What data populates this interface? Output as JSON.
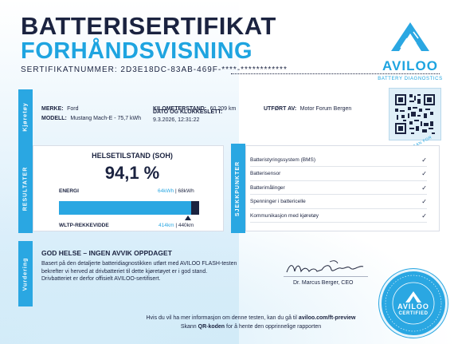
{
  "header": {
    "title_line1": "BATTERISERTIFIKAT",
    "title_line2": "FORHÅNDSVISNING",
    "certificate_number_label": "SERTIFIKATNUMMER:",
    "certificate_number": "2D3E18DC-83AB-469F-****-************"
  },
  "logo": {
    "word": "AVILOO",
    "subtitle": "BATTERY DIAGNOSTICS"
  },
  "vehicle": {
    "band_label": "Kjøretøy",
    "make_label": "MERKE:",
    "make": "Ford",
    "model_label": "MODELL:",
    "model": "Mustang Mach-E - 75,7 kWh",
    "odometer_label": "KILOMETERSTAND:",
    "odometer": "60 209 km",
    "date_label": "DATO OG KLOKKESLETT:",
    "date": "9.3.2026, 12:31:22",
    "performed_by_label": "UTFØRT AV:",
    "performed_by": "Motor Forum Bergen",
    "scan_label": "SCAN FOR"
  },
  "results": {
    "band_label": "RESULTATER",
    "soh_title": "HELSETILSTAND (SOH)",
    "soh_value": "94,1 %",
    "soh_fraction": 0.941,
    "energy_label": "ENERGI",
    "energy_current": "64kWh",
    "energy_total": "68kWh",
    "range_label": "WLTP-REKKEVIDDE",
    "range_current": "414km",
    "range_total": "440km"
  },
  "checkpoints": {
    "band_label": "SJEKKPUNKTER",
    "items": [
      "Batteristyringssystem (BMS)",
      "Batterisensor",
      "Batterimålinger",
      "Spenninger i battericelle",
      "Kommunikasjon med kjøretøy"
    ],
    "mark": "✓"
  },
  "assessment": {
    "band_label": "Vurdering",
    "heading": "GOD HELSE – INGEN AVVIK OPPDAGET",
    "line1": "Basert på den detaljerte batteridiagnostikken utført med AVILOO FLASH-testen",
    "line2": "bekrefter vi herved at drivbatteriet til dette kjøretøyet er i god stand.",
    "line3": "Drivbatteriet er derfor offisielt AVILOO-sertifisert.",
    "signature_name": "Dr. Marcus Berger, CEO"
  },
  "footer": {
    "line1_prefix": "Hvis du vil ha mer informasjon om denne testen, kan du gå til ",
    "line1_link": "aviloo.com/ft-preview",
    "line2_prefix": "Skann ",
    "line2_bold": "QR-koden",
    "line2_suffix": " for å hente den opprinnelige rapporten"
  },
  "seal": {
    "word": "AVILOO",
    "sub": "CERTIFIED"
  },
  "colors": {
    "accent": "#2aa7e2",
    "navy": "#1b2340"
  }
}
